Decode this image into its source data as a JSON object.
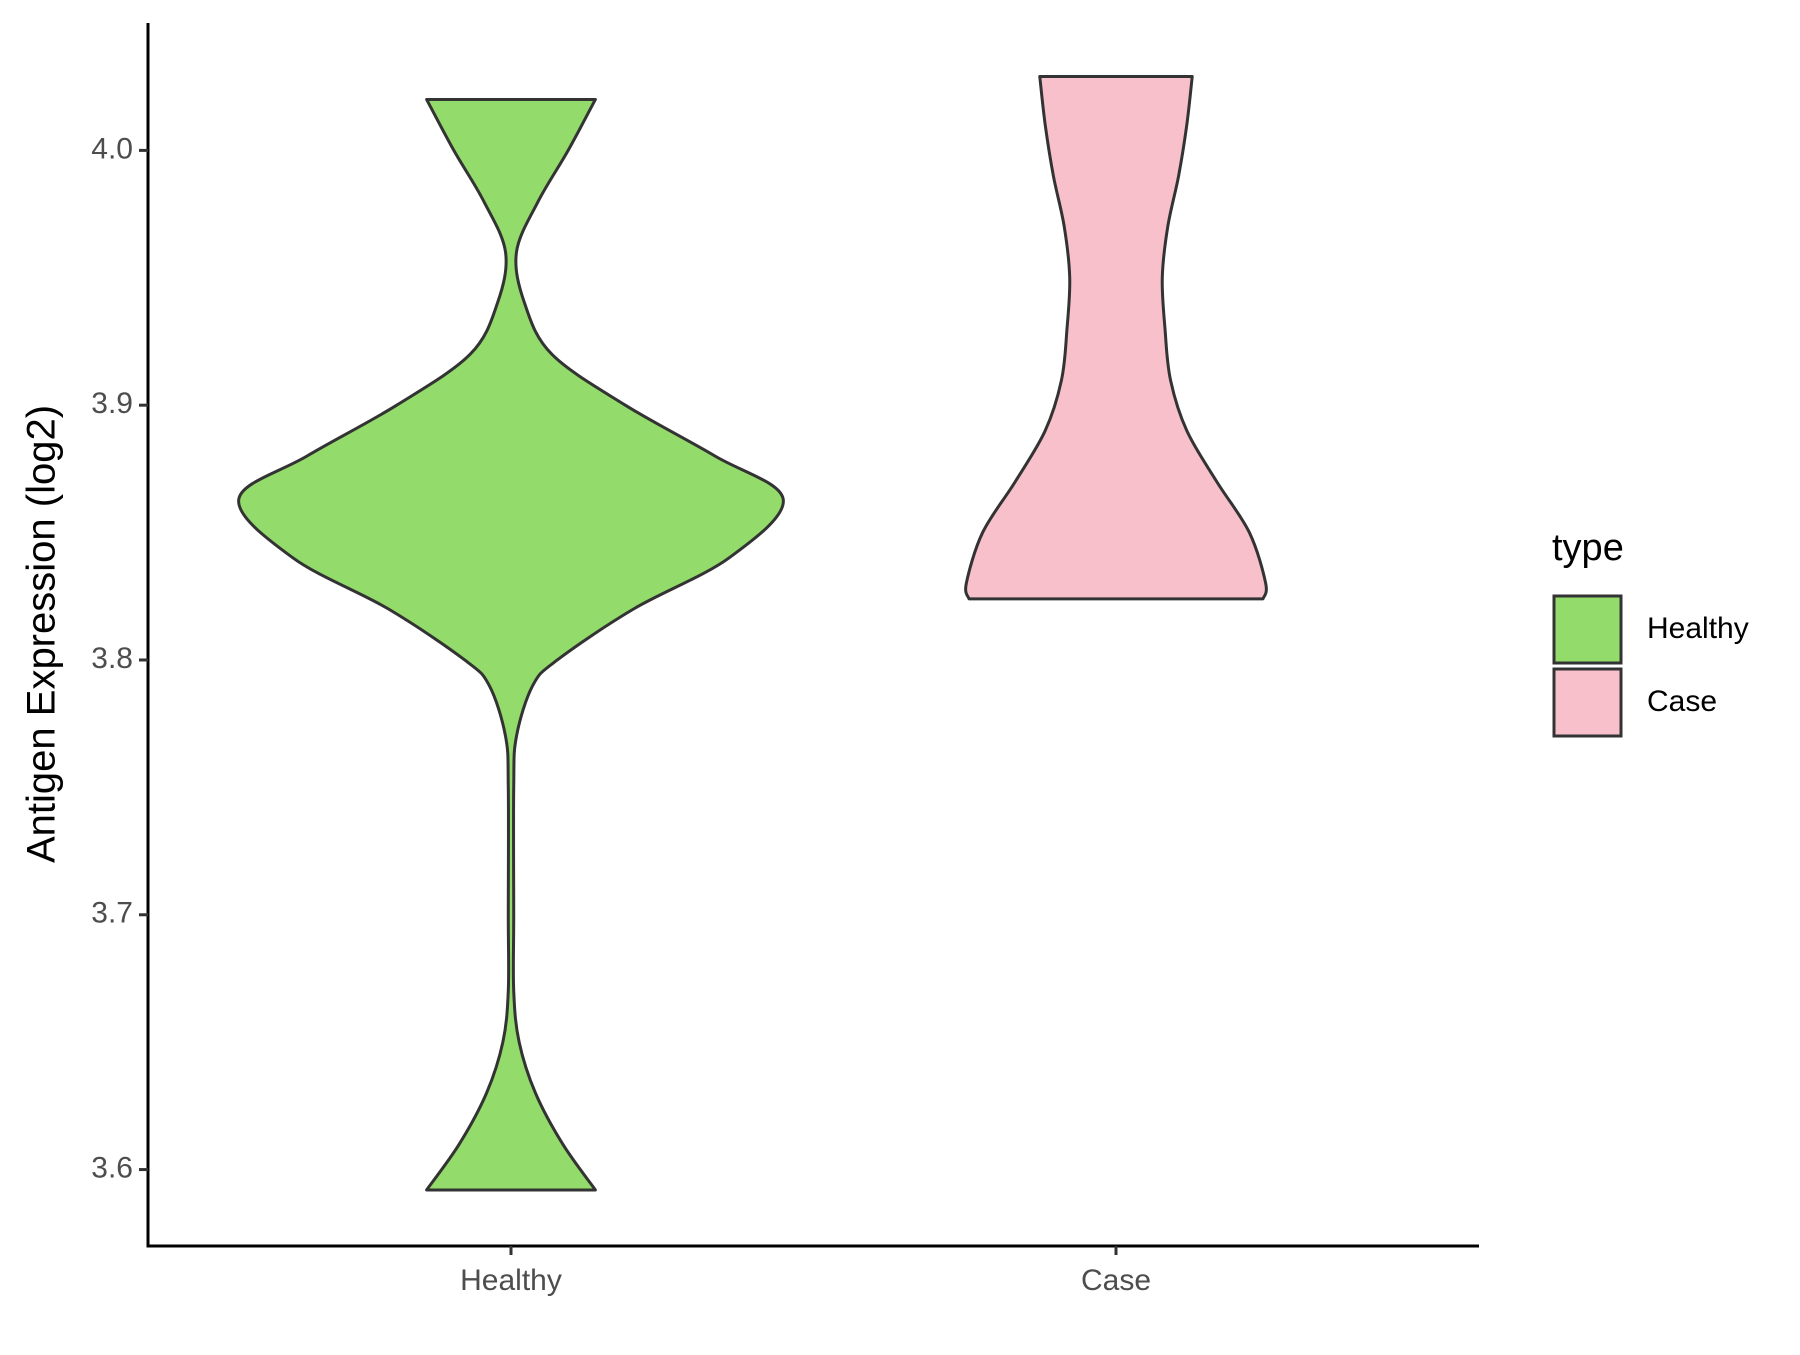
{
  "chart_data": {
    "type": "violin",
    "ylabel": "Antigen Expression (log2)",
    "categories": [
      "Healthy",
      "Case"
    ],
    "ylim": [
      3.57,
      4.05
    ],
    "yticks": [
      {
        "value": 3.6,
        "label": "3.6"
      },
      {
        "value": 3.7,
        "label": "3.7"
      },
      {
        "value": 3.8,
        "label": "3.8"
      },
      {
        "value": 3.9,
        "label": "3.9"
      },
      {
        "value": 4.0,
        "label": "4.0"
      }
    ],
    "legend": {
      "title": "type",
      "position": "right"
    },
    "series": [
      {
        "name": "Healthy",
        "color": "#93db6b",
        "y": [
          3.592,
          3.61,
          3.63,
          3.65,
          3.67,
          3.7,
          3.75,
          3.77,
          3.79,
          3.8,
          3.82,
          3.84,
          3.863,
          3.88,
          3.9,
          3.92,
          3.94,
          3.96,
          3.98,
          4.0,
          4.02
        ],
        "density": [
          0.31,
          0.19,
          0.09,
          0.03,
          0.01,
          0.01,
          0.01,
          0.02,
          0.08,
          0.17,
          0.45,
          0.8,
          1.0,
          0.75,
          0.42,
          0.15,
          0.05,
          0.02,
          0.1,
          0.21,
          0.31
        ]
      },
      {
        "name": "Case",
        "color": "#f7c0cb",
        "y": [
          3.824,
          3.83,
          3.85,
          3.87,
          3.89,
          3.91,
          3.93,
          3.95,
          3.97,
          3.99,
          4.01,
          4.029
        ],
        "density": [
          0.54,
          0.55,
          0.49,
          0.37,
          0.26,
          0.2,
          0.18,
          0.17,
          0.19,
          0.23,
          0.26,
          0.28
        ]
      }
    ]
  }
}
